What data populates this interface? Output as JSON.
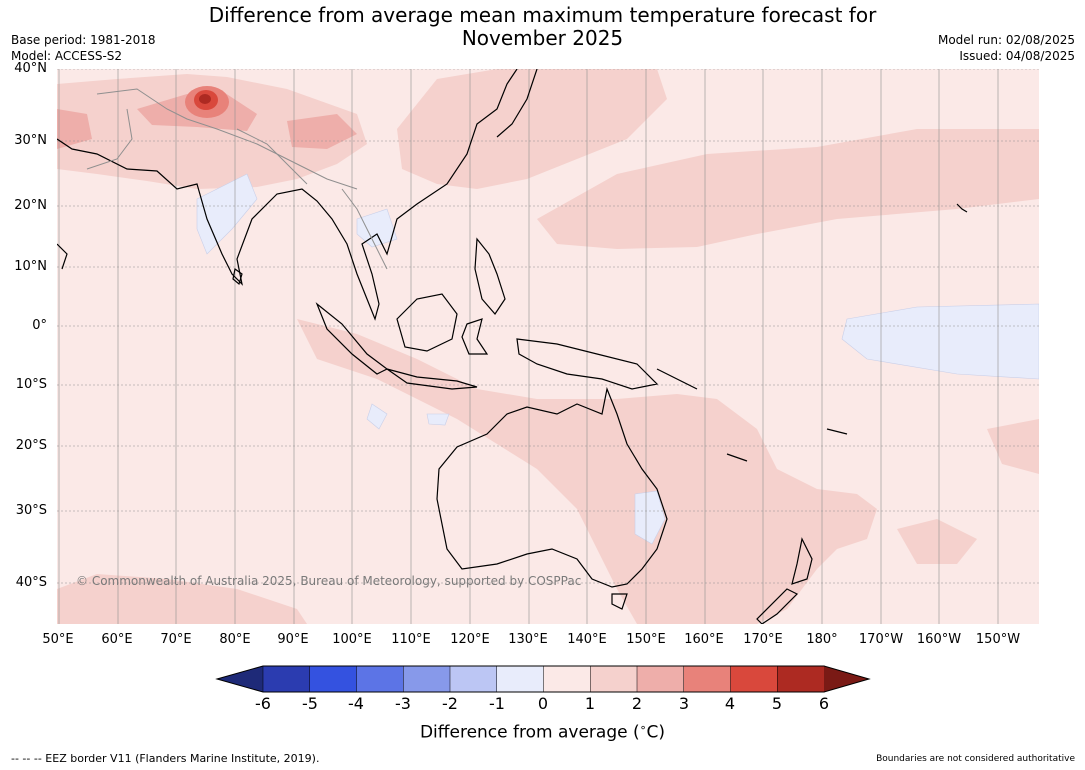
{
  "title": "Difference from average mean maximum temperature forecast for November 2025",
  "title_line1": "Difference from average mean maximum temperature forecast for",
  "title_line2": "November 2025",
  "meta": {
    "base_period": "Base period: 1981-2018",
    "model": "Model: ACCESS-S2",
    "model_run": "Model run: 02/08/2025",
    "issued": "Issued: 04/08/2025"
  },
  "map": {
    "lat_labels": [
      "40°N",
      "30°N",
      "20°N",
      "10°N",
      "0°",
      "10°S",
      "20°S",
      "30°S",
      "40°S"
    ],
    "lon_labels": [
      "50°E",
      "60°E",
      "70°E",
      "80°E",
      "90°E",
      "100°E",
      "110°E",
      "120°E",
      "130°E",
      "140°E",
      "150°E",
      "160°E",
      "170°E",
      "180°",
      "170°W",
      "160°W",
      "150°W"
    ],
    "credit": "© Commonwealth of Australia 2025, Bureau of Meteorology, supported by COSPPac",
    "background_color": "#fbe9e7"
  },
  "colorbar": {
    "ticks": [
      "-6",
      "-5",
      "-4",
      "-3",
      "-2",
      "-1",
      "0",
      "1",
      "2",
      "3",
      "4",
      "5",
      "6"
    ],
    "label": "Difference from average (°C)",
    "label_prefix": "Difference from average (",
    "label_unit": "°C",
    "label_suffix": ")",
    "colors": [
      "#1e2a78",
      "#2b3cb0",
      "#3452e0",
      "#5c74e6",
      "#8799ea",
      "#bcc6f4",
      "#e8ecfb",
      "#fbe9e7",
      "#f5d1cd",
      "#eeaeaa",
      "#e8827a",
      "#d9483c",
      "#ad2a22",
      "#7a1a15"
    ]
  },
  "footer": {
    "eez": "--  --  -- EEZ border V11 (Flanders Marine Institute, 2019).",
    "boundaries": "Boundaries are not considered authoritative"
  }
}
